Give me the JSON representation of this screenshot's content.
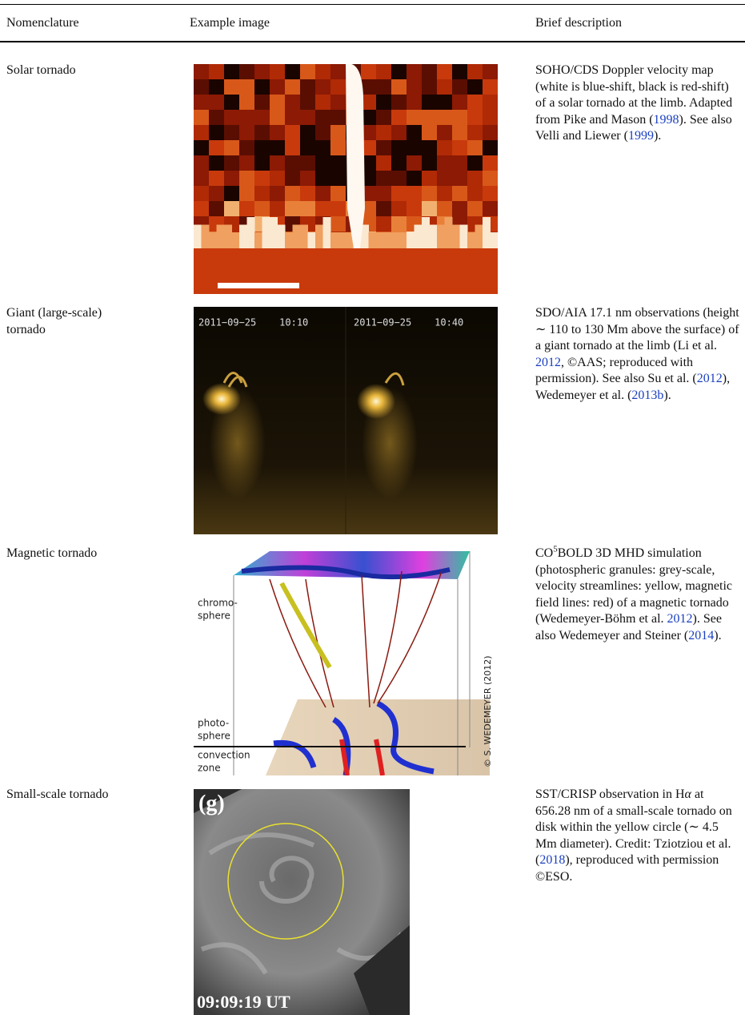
{
  "table": {
    "headers": [
      "Nomenclature",
      "Example image",
      "Brief description"
    ],
    "rows": [
      {
        "name": "Solar tornado",
        "description": [
          "SOHO/CDS Doppler velocity map (white is blue-shift, black is red-shift) of a solar tornado at the limb. Adapted from Pike and Mason (",
          {
            "text": "1998",
            "style": "link"
          },
          "). See also Velli and Liewer (",
          {
            "text": "1999",
            "style": "link"
          },
          ")."
        ]
      },
      {
        "name": "Giant (large-scale) tornado",
        "image_labels": [
          "2011−09−25    10:10",
          "2011−09−25    10:40"
        ],
        "description": [
          "SDO/AIA 17.1 nm observations (height ∼ 110 to 130 Mm above the surface) of a giant tornado at the limb (Li et al. ",
          {
            "text": "2012",
            "style": "link"
          },
          ", ©AAS; reproduced with permission). See also Su et al. (",
          {
            "text": "2012",
            "style": "link"
          },
          "), Wedemeyer et al. (",
          {
            "text": "2013b",
            "style": "link"
          },
          ")."
        ]
      },
      {
        "name": "Magnetic tornado",
        "image_labels": [
          "chromo-",
          "sphere",
          "photo-",
          "sphere",
          "convection",
          "zone",
          "© S. WEDEMEYER (2012)"
        ],
        "description": [
          "CO",
          {
            "text": "5",
            "style": "sup"
          },
          "BOLD 3D MHD simulation (photospheric granules: grey-scale, velocity streamlines: yellow, magnetic field lines: red) of a magnetic tornado (Wedemeyer-Böhm et al. ",
          {
            "text": "2012",
            "style": "link"
          },
          "). See also Wedemeyer and Steiner (",
          {
            "text": "2014",
            "style": "link"
          },
          ")."
        ]
      },
      {
        "name": "Small-scale tornado",
        "image_labels": [
          "(g)",
          "09:09:19 UT"
        ],
        "description": [
          "SST/CRISP observation in H",
          {
            "text": "α",
            "style": "italic"
          },
          " at 656.28 nm of a small-scale tornado on disk within the yellow circle (∼ 4.5 Mm diameter). Credit: Tziotziou et al. (",
          {
            "text": "2018",
            "style": "link"
          },
          "), reproduced with permission ©ESO."
        ]
      }
    ]
  }
}
